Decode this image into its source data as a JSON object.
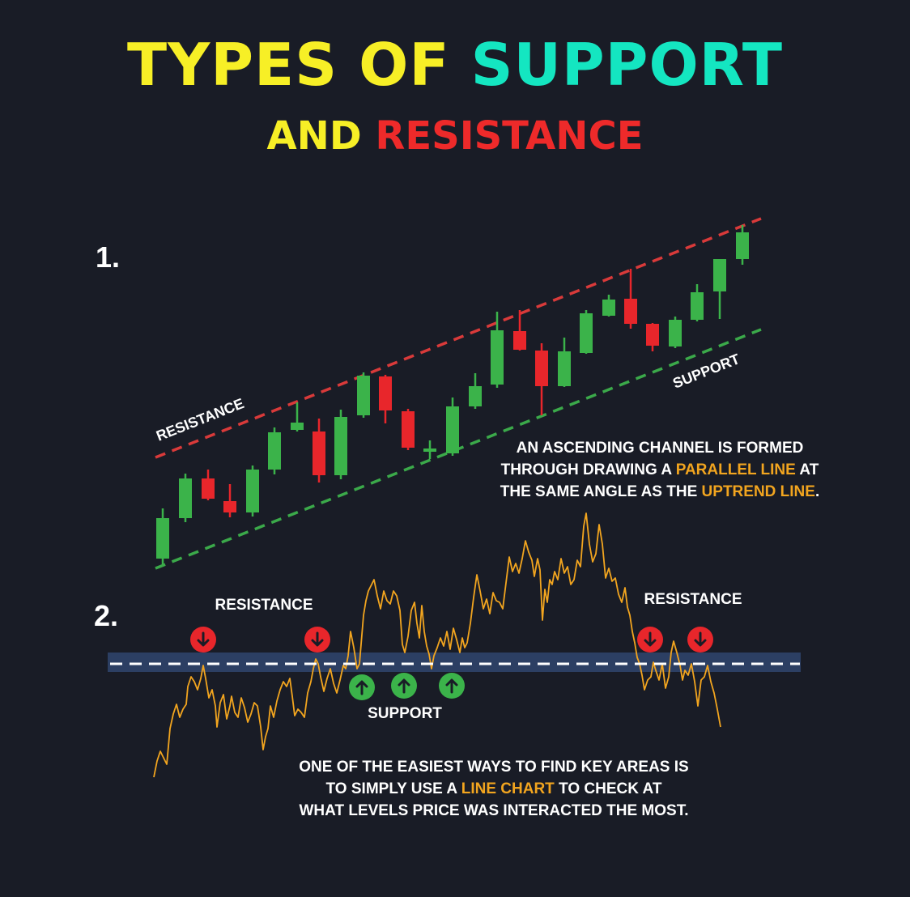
{
  "title": {
    "part1": "TYPES OF",
    "part2": "SUPPORT",
    "part3": "AND",
    "part4": "RESISTANCE"
  },
  "section1": {
    "number": "1.",
    "resistance_label": "RESISTANCE",
    "support_label": "SUPPORT",
    "caption_a": "AN ASCENDING CHANNEL IS FORMED",
    "caption_b1": "THROUGH DRAWING A",
    "caption_b_hl": "PARALLEL LINE",
    "caption_b2": "AT",
    "caption_c1": "THE SAME ANGLE AS THE",
    "caption_c_hl": "UPTREND LINE",
    "caption_c2": "."
  },
  "section2": {
    "number": "2.",
    "resistance_label_left": "RESISTANCE",
    "resistance_label_right": "RESISTANCE",
    "support_label": "SUPPORT",
    "caption_a": "ONE OF THE EASIEST WAYS TO FIND KEY AREAS IS",
    "caption_b1": "TO SIMPLY USE A",
    "caption_b_hl": "LINE CHART",
    "caption_b2": "TO CHECK AT",
    "caption_c": "WHAT LEVELS PRICE WAS INTERACTED THE MOST."
  },
  "colors": {
    "background": "#191c26",
    "bull": "#3bb34a",
    "bear": "#e8262b",
    "resistance_line": "#d93a3a",
    "support_line": "#3ba94a",
    "price_line": "#f2a51f",
    "band": "#2c3f63",
    "highlight": "#f2a51f"
  },
  "icons": [
    "arrow-down-circle-icon",
    "arrow-up-circle-icon"
  ]
}
